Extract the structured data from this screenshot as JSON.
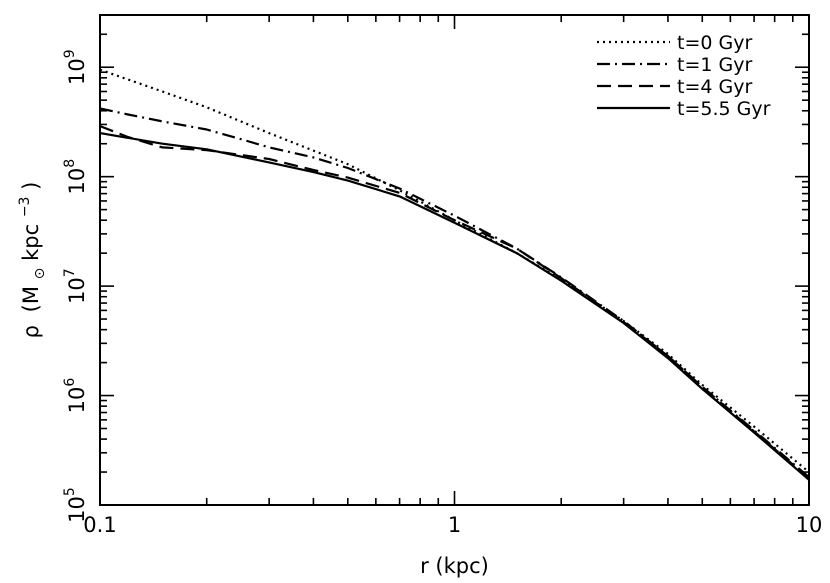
{
  "chart_data": {
    "type": "line",
    "xlabel": "r (kpc)",
    "ylabel": "ρ (M⊙ kpc⁻³)",
    "ylabel_parts": {
      "symbol": "ρ",
      "open": "(M",
      "sub": "⊙",
      "mid": " kpc",
      "sup": "−3",
      "close": ")"
    },
    "x_scale": "log",
    "y_scale": "log",
    "xlim": [
      0.1,
      10
    ],
    "ylim": [
      100000,
      3000000000
    ],
    "x_ticks": [
      {
        "value": 0.1,
        "label": "0.1"
      },
      {
        "value": 1,
        "label": "1"
      },
      {
        "value": 10,
        "label": "10"
      }
    ],
    "y_ticks": [
      {
        "value": 100000,
        "base": "10",
        "exp": "5"
      },
      {
        "value": 1000000,
        "base": "10",
        "exp": "6"
      },
      {
        "value": 10000000,
        "base": "10",
        "exp": "7"
      },
      {
        "value": 100000000,
        "base": "10",
        "exp": "8"
      },
      {
        "value": 1000000000,
        "base": "10",
        "exp": "9"
      }
    ],
    "grid": false,
    "legend_position": "top-right",
    "series": [
      {
        "name": "t=0 Gyr",
        "dash": "dotted",
        "x": [
          0.1,
          0.15,
          0.2,
          0.3,
          0.5,
          0.7,
          1,
          1.5,
          2,
          3,
          4,
          5,
          7,
          10
        ],
        "y": [
          950000000,
          600000000,
          430000000,
          250000000,
          130000000,
          75000000,
          40000000,
          20000000,
          11500000,
          4800000,
          2400000,
          1250000,
          520000,
          200000
        ]
      },
      {
        "name": "t=1 Gyr",
        "dash": "dashdot",
        "x": [
          0.1,
          0.12,
          0.15,
          0.2,
          0.25,
          0.3,
          0.4,
          0.5,
          0.7,
          1,
          1.5,
          2,
          3,
          4,
          5,
          7,
          10
        ],
        "y": [
          420000000,
          370000000,
          320000000,
          270000000,
          220000000,
          185000000,
          150000000,
          120000000,
          78000000,
          44000000,
          22000000,
          12000000,
          4800000,
          2300000,
          1200000,
          480000,
          180000
        ]
      },
      {
        "name": "t=4 Gyr",
        "dash": "dashed",
        "x": [
          0.1,
          0.12,
          0.15,
          0.2,
          0.3,
          0.4,
          0.5,
          0.7,
          1,
          1.5,
          2,
          3,
          4,
          5,
          7,
          10
        ],
        "y": [
          290000000,
          230000000,
          185000000,
          175000000,
          145000000,
          115000000,
          98000000,
          71000000,
          40000000,
          22000000,
          11800000,
          4700000,
          2300000,
          1200000,
          470000,
          175000
        ]
      },
      {
        "name": "t=5.5 Gyr",
        "dash": "solid",
        "x": [
          0.1,
          0.15,
          0.2,
          0.3,
          0.4,
          0.5,
          0.7,
          1,
          1.5,
          2,
          3,
          4,
          5,
          7,
          10
        ],
        "y": [
          250000000,
          200000000,
          178000000,
          135000000,
          110000000,
          92000000,
          66000000,
          38000000,
          20000000,
          11200000,
          4600000,
          2200000,
          1150000,
          460000,
          170000
        ]
      }
    ]
  }
}
